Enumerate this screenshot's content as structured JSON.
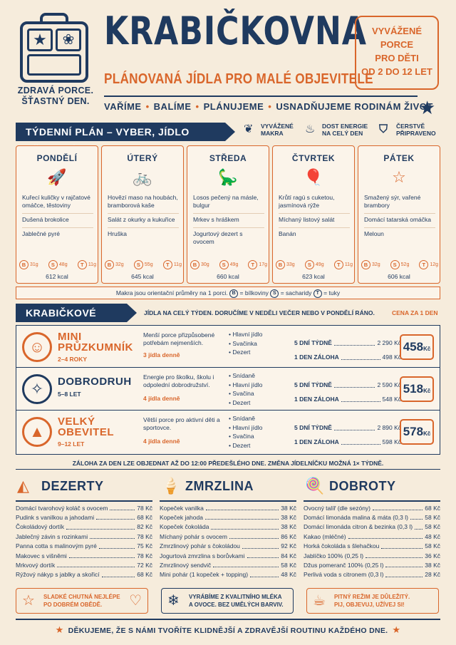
{
  "logo": {
    "line1": "ZDRAVÁ PORCE.",
    "line2": "ŠŤASTNÝ DEN."
  },
  "title": "KRABIČKOVNA",
  "subtitle": "PLÁNOVANÁ JÍDLA PRO MALÉ OBJEVITELE",
  "taglines": [
    "VAŘÍME",
    "BALÍME",
    "PLÁNUJEME",
    "USNADŇUJEME RODINÁM ŽIVOT"
  ],
  "badge": [
    "VYVÁŽENÉ",
    "PORCE",
    "PRO DĚTI",
    "OD 2 DO 12 LET"
  ],
  "week": {
    "heading": "TÝDENNÍ PLÁN – VYBER, JÍDLO PŘIPRAVÍME",
    "legend": [
      {
        "icon": "leaf-icon",
        "glyph": "❦",
        "line1": "VYVÁŽENÉ",
        "line2": "MAKRA"
      },
      {
        "icon": "energy-icon",
        "glyph": "♨",
        "line1": "DOST ENERGIE",
        "line2": "NA CELÝ DEN"
      },
      {
        "icon": "bag-icon",
        "glyph": "⛉",
        "line1": "ČERSTVĚ",
        "line2": "PŘIPRAVENO"
      }
    ],
    "days": [
      {
        "name": "PONDĚLÍ",
        "icon": "rocket-icon",
        "glyph": "🚀",
        "meals": [
          "Kuřecí kuličky v rajčatové omáčce, těstoviny",
          "Dušená brokolice",
          "Jablečné pyré"
        ],
        "b": "31g",
        "s": "48g",
        "t": "11g",
        "kcal": "612 kcal"
      },
      {
        "name": "ÚTERÝ",
        "icon": "bicycle-icon",
        "glyph": "🚲",
        "meals": [
          "Hovězí maso na houbách, bramborová kaše",
          "Salát z okurky a kukuřice",
          "Hruška"
        ],
        "b": "32g",
        "s": "55g",
        "t": "11g",
        "kcal": "645 kcal"
      },
      {
        "name": "STŘEDA",
        "icon": "dinosaur-icon",
        "glyph": "🦕",
        "meals": [
          "Losos pečený na másle, bulgur",
          "Mrkev s hráškem",
          "Jogurtový dezert s ovocem"
        ],
        "b": "30g",
        "s": "49g",
        "t": "17g",
        "kcal": "660 kcal"
      },
      {
        "name": "ČTVRTEK",
        "icon": "balloon-icon",
        "glyph": "🎈",
        "meals": [
          "Krůtí ragú s cuketou, jasmínová rýže",
          "Míchaný listový salát",
          "Banán"
        ],
        "b": "33g",
        "s": "49g",
        "t": "11g",
        "kcal": "623 kcal"
      },
      {
        "name": "PÁTEK",
        "icon": "star-icon",
        "glyph": "☆",
        "meals": [
          "Smažený sýr, vařené brambory",
          "Domácí tatarská omáčka",
          "Meloun"
        ],
        "b": "32g",
        "s": "52g",
        "t": "12g",
        "kcal": "606 kcal"
      }
    ],
    "note_pre": "Makra jsou orientační průměry na 1 porci.",
    "note_b": "= bílkoviny",
    "note_s": "= sacharidy",
    "note_t": "= tuky"
  },
  "packages": {
    "heading": "KRABIČKOVÉ BALÍČKY",
    "subheading": "JÍDLA NA CELÝ TÝDEN. DORUČÍME V NEDĚLI VEČER NEBO V PONDĚLÍ RÁNO.",
    "price_label": "CENA ZA 1 DEN",
    "week_label": "5 DNÍ TÝDNĚ",
    "deposit_label": "1 DEN ZÁLOHA",
    "currency": "Kč",
    "items": [
      {
        "name1": "MINI",
        "name2": "PRŮZKUMNÍK",
        "age": "2–4 ROKY",
        "icon": "child-face-icon",
        "glyph": "☺",
        "desc": "Menší porce přizpůsobené potřebám nejmenších.",
        "days": "3 jídla denně",
        "contents": [
          "Hlavní jídlo",
          "Svačinka",
          "Dezert"
        ],
        "week_price": "2 290 Kč",
        "deposit": "498 Kč",
        "day_price": "458"
      },
      {
        "name1": "DOBRODRUH",
        "name2": "",
        "age": "5–8 LET",
        "icon": "compass-icon",
        "glyph": "✧",
        "desc": "Energie pro školku, školu i odpolední dobrodružství.",
        "days": "4 jídla denně",
        "contents": [
          "Snídaně",
          "Hlavní jídlo",
          "Svačina",
          "Dezert"
        ],
        "week_price": "2 590 Kč",
        "deposit": "548 Kč",
        "day_price": "518"
      },
      {
        "name1": "VELKÝ",
        "name2": "OBEVITEL",
        "age": "9–12 LET",
        "icon": "mountain-icon",
        "glyph": "▲",
        "desc": "Větší porce pro aktivní děti a sportovce.",
        "days": "4 jídla denně",
        "contents": [
          "Snídaně",
          "Hlavní jídlo",
          "Svačina",
          "Dezert"
        ],
        "week_price": "2 890 Kč",
        "deposit": "598 Kč",
        "day_price": "578"
      }
    ],
    "note": "ZÁLOHA ZA DEN LZE OBJEDNAT AŽ DO 12:00 PŘEDEŠLÉHO DNE. ZMĚNA JÍDELNÍČKU MOŽNÁ 1× TÝDNĚ."
  },
  "menus": [
    {
      "title": "DEZERTY",
      "icon": "cake-icon",
      "glyph": "◭",
      "items": [
        {
          "n": "Domácí tvarohový koláč s ovocem",
          "p": "78 Kč"
        },
        {
          "n": "Pudink s vanilkou a jahodami",
          "p": "68 Kč"
        },
        {
          "n": "Čokoládový dortík",
          "p": "82 Kč"
        },
        {
          "n": "Jablečný závin s rozinkami",
          "p": "78 Kč"
        },
        {
          "n": "Panna cotta s malinovým pyré",
          "p": "75 Kč"
        },
        {
          "n": "Makovec s višněmi",
          "p": "78 Kč"
        },
        {
          "n": "Mrkvový dortík",
          "p": "72 Kč"
        },
        {
          "n": "Rýžový nákyp s jablky a skořicí",
          "p": "68 Kč"
        }
      ],
      "promo": [
        "SLADKÉ CHUTNÁ NEJLÉPE",
        "PO DOBRÉM OBĚDĚ."
      ]
    },
    {
      "title": "ZMRZLINA",
      "icon": "ice-cream-icon",
      "glyph": "🍦",
      "items": [
        {
          "n": "Kopeček vanilka",
          "p": "38 Kč"
        },
        {
          "n": "Kopeček jahoda",
          "p": "38 Kč"
        },
        {
          "n": "Kopeček čokoláda",
          "p": "38 Kč"
        },
        {
          "n": "Míchaný pohár s ovocem",
          "p": "86 Kč"
        },
        {
          "n": "Zmrzlinový pohár s čokoládou",
          "p": "92 Kč"
        },
        {
          "n": "Jogurtová zmrzlina s borůvkami",
          "p": "84 Kč"
        },
        {
          "n": "Zmrzlinový sendvič",
          "p": "58 Kč"
        },
        {
          "n": "Mini pohár (1 kopeček + topping)",
          "p": "48 Kč"
        }
      ],
      "promo": [
        "VYRÁBÍME Z KVALITNÍHO MLÉKA",
        "A OVOCE. BEZ UMĚLÝCH BARVIV."
      ]
    },
    {
      "title": "DOBROTY",
      "icon": "lollipop-icon",
      "glyph": "🍭",
      "items": [
        {
          "n": "Ovocný talíř (dle sezóny)",
          "p": "68 Kč"
        },
        {
          "n": "Domácí limonáda malina & máta (0,3 l)",
          "p": "58 Kč"
        },
        {
          "n": "Domácí limonáda citron & bezinka (0,3 l)",
          "p": "58 Kč"
        },
        {
          "n": "Kakao (mléčné)",
          "p": "48 Kč"
        },
        {
          "n": "Horká čokoláda s šlehačkou",
          "p": "58 Kč"
        },
        {
          "n": "Jablíčko 100% (0,25 l)",
          "p": "36 Kč"
        },
        {
          "n": "Džus pomeranč 100% (0,25 l)",
          "p": "38 Kč"
        },
        {
          "n": "Perlivá voda s citronem (0,3 l)",
          "p": "28 Kč"
        }
      ],
      "promo": [
        "PITNÝ REŽIM JE DŮLEŽITÝ.",
        "PIJ, OBJEVUJ, UŽÍVEJ SI!"
      ]
    }
  ],
  "footer": "DĚKUJEME, ŽE S NÁMI TVOŘÍTE KLIDNĚJŠÍ A ZDRAVĚJŠÍ ROUTINU KAŽDÉHO DNE."
}
